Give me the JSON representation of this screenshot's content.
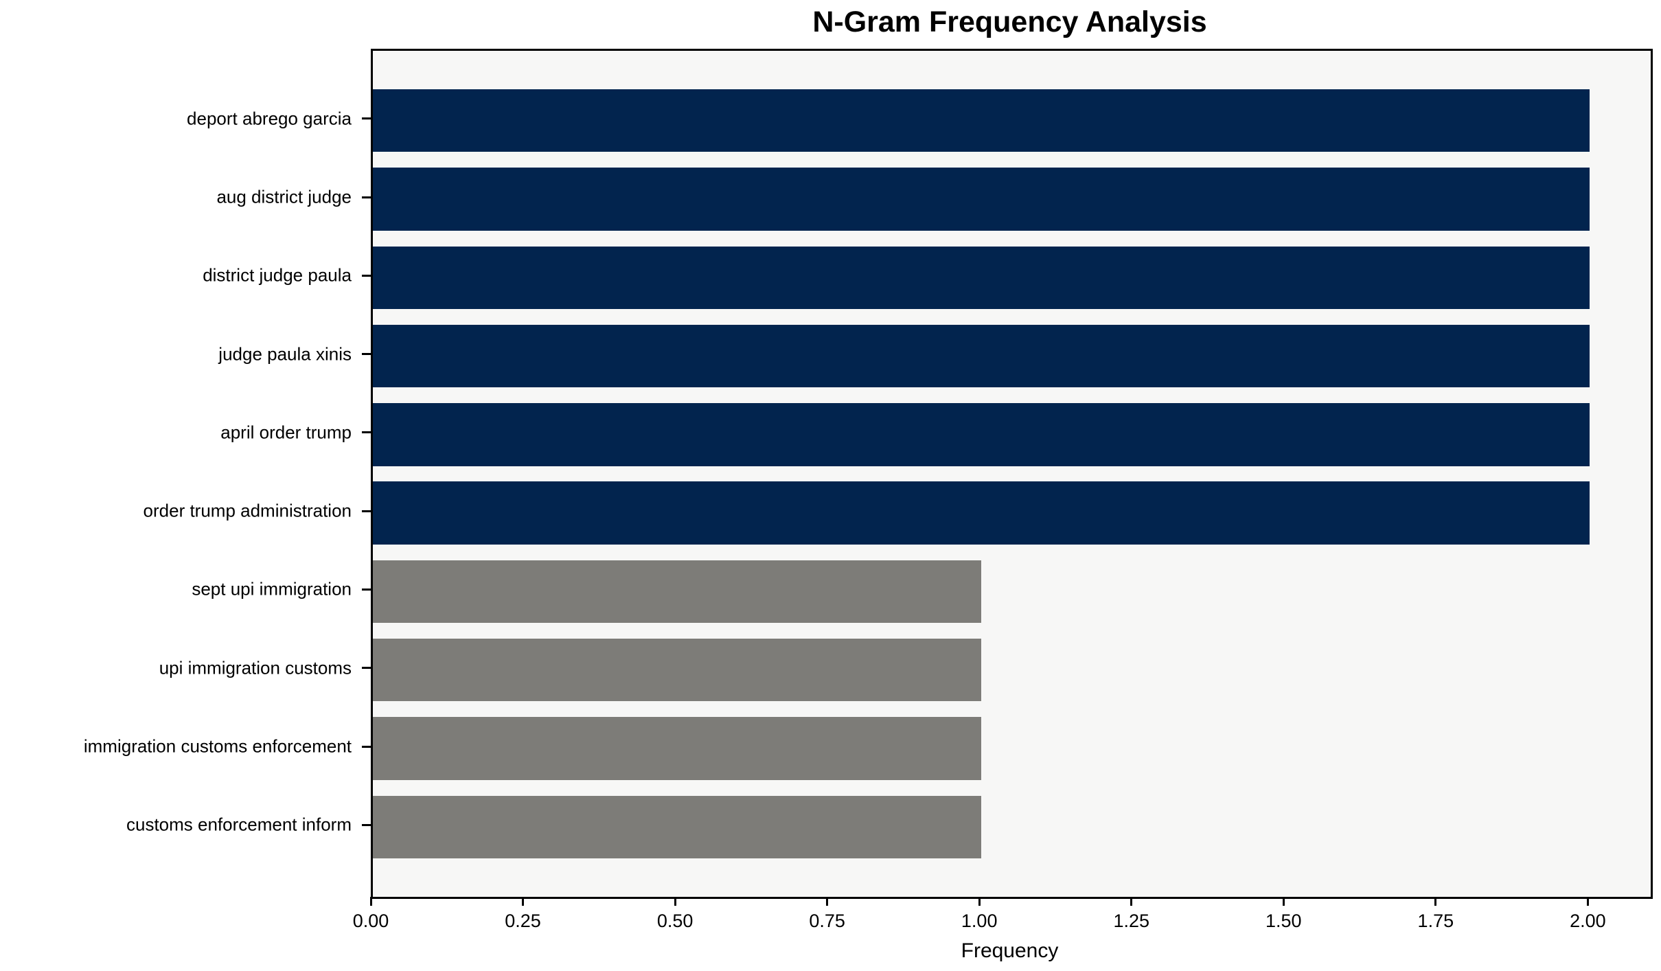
{
  "chart_data": {
    "type": "bar",
    "orientation": "horizontal",
    "title": "N-Gram Frequency Analysis",
    "xlabel": "Frequency",
    "ylabel": "",
    "categories": [
      "deport abrego garcia",
      "aug district judge",
      "district judge paula",
      "judge paula xinis",
      "april order trump",
      "order trump administration",
      "sept upi immigration",
      "upi immigration customs",
      "immigration customs enforcement",
      "customs enforcement inform"
    ],
    "values": [
      2,
      2,
      2,
      2,
      2,
      2,
      1,
      1,
      1,
      1
    ],
    "bar_colors": [
      "#02244e",
      "#02244e",
      "#02244e",
      "#02244e",
      "#02244e",
      "#02244e",
      "#7d7c78",
      "#7d7c78",
      "#7d7c78",
      "#7d7c78"
    ],
    "xlim": [
      0,
      2.1
    ],
    "x_ticks": [
      {
        "value": 0.0,
        "label": "0.00"
      },
      {
        "value": 0.25,
        "label": "0.25"
      },
      {
        "value": 0.5,
        "label": "0.50"
      },
      {
        "value": 0.75,
        "label": "0.75"
      },
      {
        "value": 1.0,
        "label": "1.00"
      },
      {
        "value": 1.25,
        "label": "1.25"
      },
      {
        "value": 1.5,
        "label": "1.50"
      },
      {
        "value": 1.75,
        "label": "1.75"
      },
      {
        "value": 2.0,
        "label": "2.00"
      }
    ],
    "grid": false,
    "legend": null,
    "colors": {
      "frequent_bar": "#02244e",
      "infrequent_bar": "#7d7c78",
      "plot_background": "#f7f7f6",
      "figure_background": "#ffffff",
      "axis": "#000000",
      "text": "#000000"
    }
  }
}
